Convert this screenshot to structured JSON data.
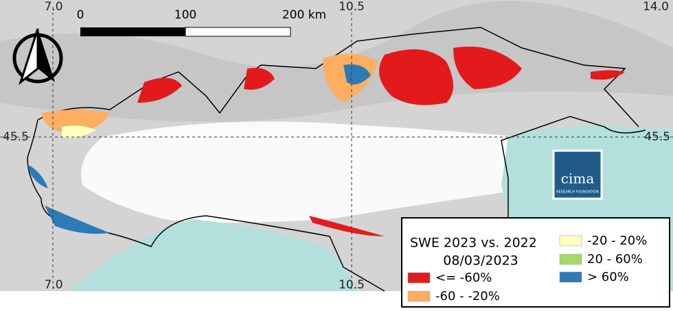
{
  "map": {
    "grid_labels": {
      "top": [
        "7.0",
        "10.5",
        "14.0"
      ],
      "bottom": [
        "7.0",
        "10.5"
      ],
      "left": [
        "45.5"
      ],
      "right": [
        "45.5"
      ]
    },
    "scale_bar": {
      "labels": [
        "0",
        "100",
        "200 km"
      ]
    },
    "legend": {
      "title": "SWE 2023 vs. 2022",
      "date": "08/03/2023",
      "items": [
        {
          "label": "<= -60%",
          "color": "#e31a1c"
        },
        {
          "label": "-60 - -20%",
          "color": "#fdae61"
        },
        {
          "label": "-20 - 20%",
          "color": "#ffffbf"
        },
        {
          "label": "20 - 60%",
          "color": "#a6d96a"
        },
        {
          "label": "> 60%",
          "color": "#2c7bb6"
        }
      ]
    },
    "logo": {
      "name": "cima",
      "subtitle": "RESEARCH FOUNDATION"
    }
  }
}
